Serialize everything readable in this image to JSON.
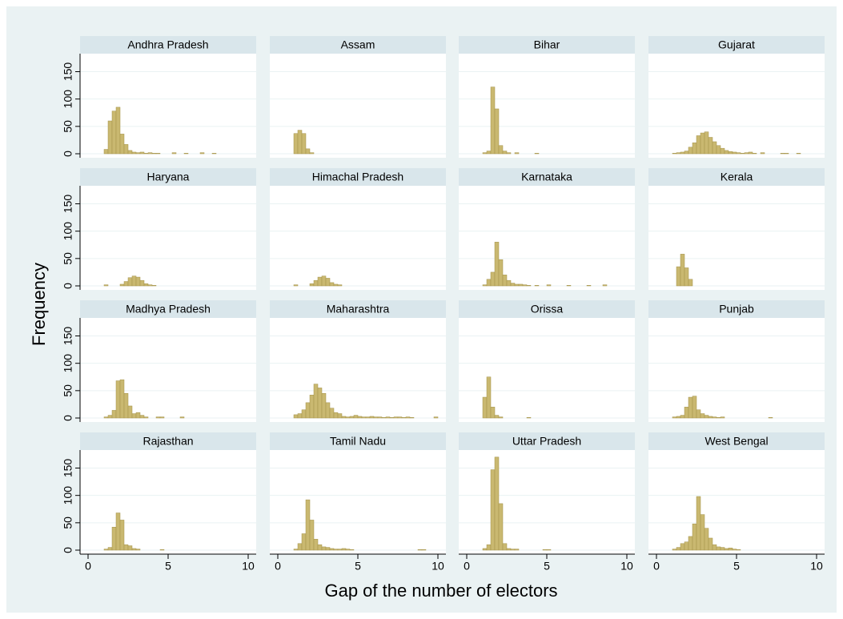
{
  "chart_data": {
    "type": "histogram",
    "xlabel": "Gap of the number of electors",
    "ylabel": "Frequency",
    "xlim": [
      -0.5,
      10.5
    ],
    "ylim": [
      0,
      180
    ],
    "xticks": [
      0,
      5,
      10
    ],
    "yticks": [
      0,
      50,
      100,
      150
    ],
    "grid": true,
    "color": "#c9b870",
    "edgecolor": "#a39148",
    "bins": [
      1,
      1.25,
      1.5,
      1.75,
      2,
      2.25,
      2.5,
      2.75,
      3,
      3.25,
      3.5,
      3.75,
      4,
      4.25,
      4.5,
      4.75,
      5,
      5.25,
      5.5,
      5.75,
      6,
      6.25,
      6.5,
      6.75,
      7,
      7.25,
      7.5,
      7.75,
      8,
      8.25,
      8.5,
      8.75,
      9,
      9.25,
      9.5,
      9.75,
      10
    ],
    "panels": [
      {
        "title": "Andhra Pradesh",
        "counts": [
          8,
          60,
          78,
          85,
          36,
          17,
          6,
          3,
          2,
          3,
          1,
          2,
          1,
          1,
          0,
          0,
          0,
          2,
          0,
          0,
          1,
          0,
          0,
          0,
          2,
          0,
          0,
          1,
          0,
          0,
          0,
          0,
          0,
          0,
          0,
          0
        ]
      },
      {
        "title": "Assam",
        "counts": [
          37,
          43,
          37,
          9,
          2,
          0,
          0,
          0,
          0,
          0,
          0,
          0,
          0,
          0,
          0,
          0,
          0,
          0,
          0,
          0,
          0,
          0,
          0,
          0,
          0,
          0,
          0,
          0,
          0,
          0,
          0,
          0,
          0,
          0,
          0,
          0
        ]
      },
      {
        "title": "Bihar",
        "counts": [
          2,
          5,
          122,
          82,
          15,
          5,
          2,
          0,
          2,
          0,
          0,
          0,
          0,
          1,
          0,
          0,
          0,
          0,
          0,
          0,
          0,
          0,
          0,
          0,
          0,
          0,
          0,
          0,
          0,
          0,
          0,
          0,
          0,
          0,
          0,
          0
        ]
      },
      {
        "title": "Gujarat",
        "counts": [
          1,
          2,
          3,
          5,
          12,
          20,
          33,
          38,
          40,
          30,
          22,
          15,
          10,
          6,
          4,
          3,
          2,
          1,
          2,
          3,
          1,
          0,
          2,
          0,
          0,
          0,
          0,
          1,
          1,
          0,
          0,
          1,
          0,
          0,
          0,
          0
        ]
      },
      {
        "title": "Haryana",
        "counts": [
          2,
          0,
          0,
          0,
          3,
          8,
          15,
          18,
          16,
          10,
          4,
          2,
          1,
          0,
          0,
          0,
          0,
          0,
          0,
          0,
          0,
          0,
          0,
          0,
          0,
          0,
          0,
          0,
          0,
          0,
          0,
          0,
          0,
          0,
          0,
          0
        ]
      },
      {
        "title": "Himachal Pradesh",
        "counts": [
          2,
          0,
          0,
          0,
          4,
          10,
          16,
          18,
          14,
          6,
          3,
          2,
          0,
          0,
          0,
          0,
          0,
          0,
          0,
          0,
          0,
          0,
          0,
          0,
          0,
          0,
          0,
          0,
          0,
          0,
          0,
          0,
          0,
          0,
          0,
          0
        ]
      },
      {
        "title": "Karnataka",
        "counts": [
          2,
          12,
          25,
          80,
          48,
          20,
          10,
          5,
          3,
          3,
          2,
          1,
          0,
          1,
          0,
          0,
          2,
          0,
          0,
          0,
          0,
          1,
          0,
          0,
          0,
          0,
          1,
          0,
          0,
          0,
          2,
          0,
          0,
          0,
          0,
          0
        ]
      },
      {
        "title": "Kerala",
        "counts": [
          0,
          35,
          58,
          33,
          12,
          0,
          0,
          0,
          0,
          0,
          0,
          0,
          0,
          0,
          0,
          0,
          0,
          0,
          0,
          0,
          0,
          0,
          0,
          0,
          0,
          0,
          0,
          0,
          0,
          0,
          0,
          0,
          0,
          0,
          0,
          0
        ]
      },
      {
        "title": "Madhya Pradesh",
        "counts": [
          2,
          5,
          14,
          68,
          70,
          45,
          22,
          8,
          10,
          5,
          2,
          0,
          0,
          2,
          2,
          0,
          0,
          0,
          0,
          2,
          0,
          0,
          0,
          0,
          0,
          0,
          0,
          0,
          0,
          0,
          0,
          0,
          0,
          0,
          0,
          0
        ]
      },
      {
        "title": "Maharashtra",
        "counts": [
          6,
          8,
          15,
          28,
          42,
          62,
          55,
          45,
          28,
          18,
          10,
          8,
          3,
          2,
          3,
          5,
          3,
          2,
          2,
          3,
          2,
          2,
          1,
          2,
          1,
          2,
          2,
          1,
          2,
          1,
          0,
          0,
          0,
          0,
          0,
          2
        ]
      },
      {
        "title": "Orissa",
        "counts": [
          38,
          75,
          20,
          5,
          2,
          0,
          0,
          0,
          0,
          0,
          0,
          1,
          0,
          0,
          0,
          0,
          0,
          0,
          0,
          0,
          0,
          0,
          0,
          0,
          0,
          0,
          0,
          0,
          0,
          0,
          0,
          0,
          0,
          0,
          0,
          0
        ]
      },
      {
        "title": "Punjab",
        "counts": [
          2,
          3,
          5,
          20,
          38,
          40,
          15,
          8,
          5,
          3,
          2,
          1,
          2,
          0,
          0,
          0,
          0,
          0,
          0,
          0,
          0,
          0,
          0,
          0,
          1,
          0,
          0,
          0,
          0,
          0,
          0,
          0,
          0,
          0,
          0,
          0
        ]
      },
      {
        "title": "Rajasthan",
        "counts": [
          2,
          5,
          42,
          68,
          55,
          10,
          8,
          3,
          2,
          0,
          0,
          0,
          0,
          0,
          1,
          0,
          0,
          0,
          0,
          0,
          0,
          0,
          0,
          0,
          0,
          0,
          0,
          0,
          0,
          0,
          0,
          0,
          0,
          0,
          0,
          0
        ]
      },
      {
        "title": "Tamil Nadu",
        "counts": [
          2,
          12,
          30,
          92,
          55,
          20,
          10,
          6,
          5,
          3,
          2,
          2,
          3,
          2,
          1,
          0,
          0,
          0,
          0,
          0,
          0,
          0,
          0,
          0,
          0,
          0,
          0,
          0,
          0,
          0,
          0,
          1,
          1,
          0,
          0,
          0
        ]
      },
      {
        "title": "Uttar Pradesh",
        "counts": [
          3,
          10,
          147,
          170,
          85,
          12,
          3,
          2,
          2,
          0,
          0,
          0,
          0,
          0,
          0,
          1,
          1,
          0,
          0,
          0,
          0,
          0,
          0,
          0,
          0,
          0,
          0,
          0,
          0,
          0,
          0,
          0,
          0,
          0,
          0,
          0
        ]
      },
      {
        "title": "West Bengal",
        "counts": [
          2,
          5,
          12,
          15,
          25,
          48,
          98,
          65,
          40,
          22,
          10,
          6,
          5,
          3,
          4,
          2,
          1,
          0,
          0,
          0,
          0,
          0,
          0,
          0,
          0,
          0,
          0,
          0,
          0,
          0,
          0,
          0,
          0,
          0,
          0,
          0
        ]
      }
    ]
  }
}
